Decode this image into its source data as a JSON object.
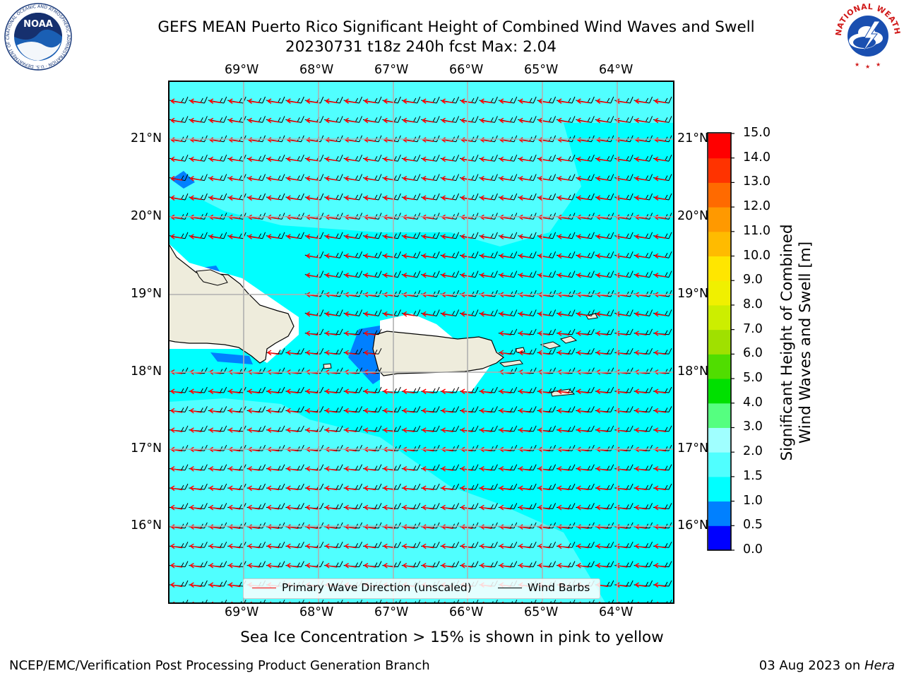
{
  "header": {
    "title_line1": "GEFS MEAN Puerto Rico Significant Height of Combined Wind Waves and Swell",
    "title_line2": "20230731 t18z 240h fcst   Max: 2.04"
  },
  "logos": {
    "left": "NOAA",
    "left_ring_text": "NATIONAL OCEANIC AND ATMOSPHERIC ADMINISTRATION · U.S. DEPARTMENT OF COMMERCE",
    "right_ring_text": "NATIONAL WEATHER SERVICE"
  },
  "map": {
    "lon_labels": [
      "69°W",
      "68°W",
      "67°W",
      "66°W",
      "65°W",
      "64°W"
    ],
    "lat_labels": [
      "21°N",
      "20°N",
      "19°N",
      "18°N",
      "17°N",
      "16°N"
    ],
    "lon_range": [
      -70.0,
      -63.25
    ],
    "lat_range": [
      15.0,
      21.75
    ],
    "land_color": "#eeecdc",
    "ocean_color": "#00ffff",
    "grid_color": "#b0b0b0"
  },
  "legend": {
    "primary_wave": "Primary Wave Direction (unscaled)",
    "wind_barbs": "Wind Barbs",
    "wave_arrow_color": "#ff0000",
    "barb_color": "#000000"
  },
  "colorbar": {
    "title_line1": "Significant Height of Combined",
    "title_line2": "Wind Waves and Swell [m]",
    "ticks": [
      "0.0",
      "0.5",
      "1.0",
      "1.5",
      "2.0",
      "3.0",
      "4.0",
      "5.0",
      "6.0",
      "7.0",
      "8.0",
      "9.0",
      "10.0",
      "11.0",
      "12.0",
      "13.0",
      "14.0",
      "15.0"
    ],
    "colors": [
      "#0000ff",
      "#0080ff",
      "#00ffff",
      "#50ffff",
      "#a0ffff",
      "#55ff80",
      "#00e000",
      "#50dd00",
      "#a0e000",
      "#ccee00",
      "#f0f000",
      "#ffe600",
      "#ffbb00",
      "#ff9900",
      "#ff6a00",
      "#ff3300",
      "#ff0000"
    ]
  },
  "subtitle": "Sea Ice Concentration > 15% is shown in pink to yellow",
  "footer": {
    "left": "NCEP/EMC/Verification Post Processing Product Generation Branch",
    "right_date": "03 Aug 2023 on ",
    "right_host": "Hera"
  }
}
